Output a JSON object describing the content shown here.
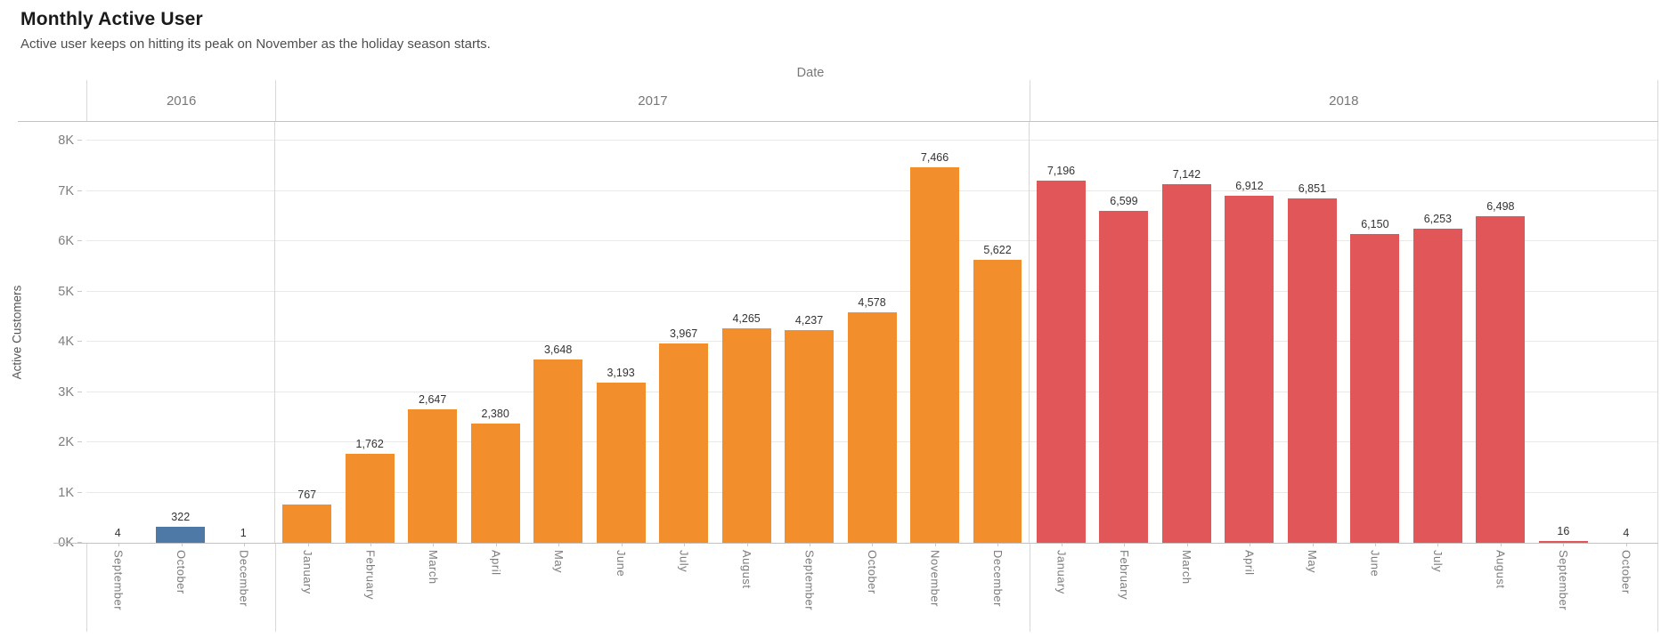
{
  "header": {
    "title": "Monthly Active User",
    "subtitle": "Active user keeps on hitting its peak on November as the holiday season starts."
  },
  "chart_data": {
    "type": "bar",
    "title": "Monthly Active User",
    "subtitle": "Active user keeps on hitting its peak on November as the holiday season starts.",
    "column_field_label": "Date",
    "xlabel": "Date",
    "ylabel": "Active Customers",
    "ylim": [
      0,
      8372
    ],
    "grid": true,
    "legend_position": "none",
    "yticks": [
      {
        "value": 0,
        "label": "0K"
      },
      {
        "value": 1000,
        "label": "1K"
      },
      {
        "value": 2000,
        "label": "2K"
      },
      {
        "value": 3000,
        "label": "3K"
      },
      {
        "value": 4000,
        "label": "4K"
      },
      {
        "value": 5000,
        "label": "5K"
      },
      {
        "value": 6000,
        "label": "6K"
      },
      {
        "value": 7000,
        "label": "7K"
      },
      {
        "value": 8000,
        "label": "8K"
      }
    ],
    "groups": [
      {
        "year": "2016",
        "color": "#4e79a7",
        "months": [
          "September",
          "October",
          "December"
        ],
        "values": [
          4,
          322,
          1
        ]
      },
      {
        "year": "2017",
        "color": "#f28e2b",
        "months": [
          "January",
          "February",
          "March",
          "April",
          "May",
          "June",
          "July",
          "August",
          "September",
          "October",
          "November",
          "December"
        ],
        "values": [
          767,
          1762,
          2647,
          2380,
          3648,
          3193,
          3967,
          4265,
          4237,
          4578,
          7466,
          5622
        ]
      },
      {
        "year": "2018",
        "color": "#e15759",
        "months": [
          "January",
          "February",
          "March",
          "April",
          "May",
          "June",
          "July",
          "August",
          "September",
          "October"
        ],
        "values": [
          7196,
          6599,
          7142,
          6912,
          6851,
          6150,
          6253,
          6498,
          16,
          4
        ]
      }
    ],
    "value_label_format": "comma-thousands"
  },
  "colors": {
    "bar_2016": "#4e79a7",
    "bar_2017": "#f28e2b",
    "bar_2018": "#e15759",
    "gridline": "#e9e9e9",
    "separator": "#d8d8d8",
    "axis_line": "#c2c2c2",
    "value_label": "#333333",
    "axis_text": "#7e7e7e"
  }
}
